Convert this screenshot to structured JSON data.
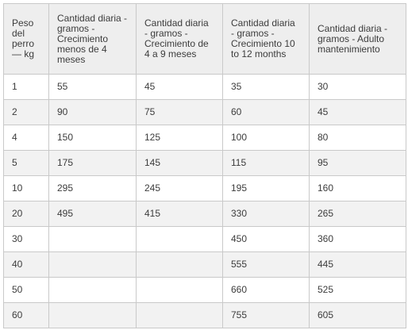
{
  "table": {
    "headers": [
      "Peso del perro — kg",
      "Cantidad diaria - gramos - Crecimiento menos de 4 meses",
      "Cantidad diaria - gramos - Crecimiento de 4 a 9 meses",
      "Cantidad diaria - gramos - Crecimiento 10 to 12 months",
      "Cantidad diaria - gramos - Adulto mantenimiento"
    ],
    "rows": [
      [
        "1",
        "55",
        "45",
        "35",
        "30"
      ],
      [
        "2",
        "90",
        "75",
        "60",
        "45"
      ],
      [
        "4",
        "150",
        "125",
        "100",
        "80"
      ],
      [
        "5",
        "175",
        "145",
        "115",
        "95"
      ],
      [
        "10",
        "295",
        "245",
        "195",
        "160"
      ],
      [
        "20",
        "495",
        "415",
        "330",
        "265"
      ],
      [
        "30",
        "",
        "",
        "450",
        "360"
      ],
      [
        "40",
        "",
        "",
        "555",
        "445"
      ],
      [
        "50",
        "",
        "",
        "660",
        "525"
      ],
      [
        "60",
        "",
        "",
        "755",
        "605"
      ]
    ]
  }
}
